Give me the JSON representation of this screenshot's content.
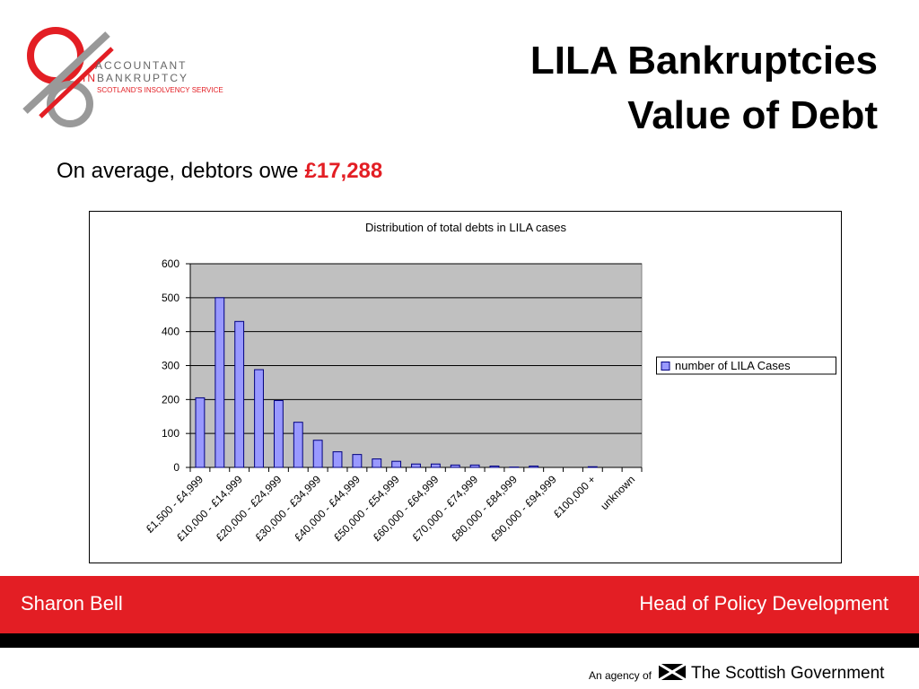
{
  "logo": {
    "line1": "ACCOUNTANT",
    "line2a": "IN",
    "line2b": "BANKRUPTCY",
    "line3": "SCOTLAND'S INSOLVENCY SERVICE"
  },
  "slide": {
    "title_line1": "LILA Bankruptcies",
    "title_line2": "Value of Debt",
    "intro": "On average, debtors owe",
    "highlight": "£17,288"
  },
  "chart_data": {
    "type": "bar",
    "title": "Distribution of total debts in LILA cases",
    "categories": [
      "£1,500 - £4,999",
      null,
      "£10,000 - £14,999",
      null,
      "£20,000 - £24,999",
      null,
      "£30,000 - £34,999",
      null,
      "£40,000 - £44,999",
      null,
      "£50,000 - £54,999",
      null,
      "£60,000 - £64,999",
      null,
      "£70,000 - £74,999",
      null,
      "£80,000 - £84,999",
      null,
      "£90,000 - £94,999",
      null,
      "£100,000 +",
      null,
      "unknown"
    ],
    "series": [
      {
        "name": "number of LILA Cases",
        "color": "#9999ff",
        "values": [
          205,
          500,
          430,
          288,
          197,
          133,
          80,
          46,
          38,
          25,
          18,
          10,
          10,
          7,
          7,
          4,
          1,
          4,
          0,
          0,
          2,
          0,
          0
        ]
      }
    ],
    "ylim": [
      0,
      600
    ],
    "yticks": [
      0,
      100,
      200,
      300,
      400,
      500,
      600
    ],
    "grid": true,
    "legend": "right"
  },
  "footer": {
    "left": "Sharon Bell",
    "right": "Head of Policy Development",
    "agency": "An agency of",
    "government": "The Scottish Government"
  }
}
